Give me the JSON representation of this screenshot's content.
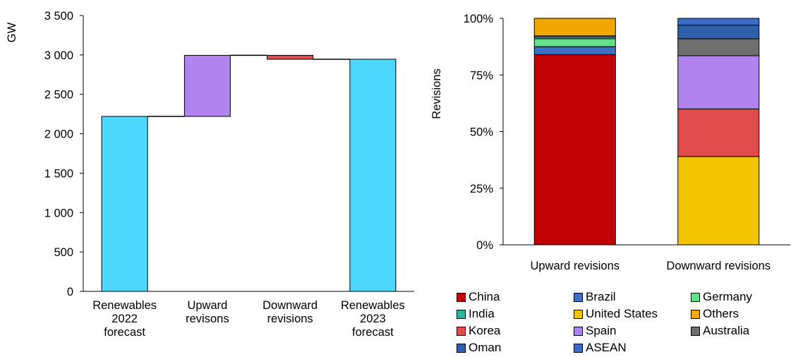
{
  "chart_data": [
    {
      "type": "bar",
      "subtype": "waterfall",
      "ylabel": "GW",
      "ylim": [
        0,
        3500
      ],
      "yticks": [
        0,
        500,
        1000,
        1500,
        2000,
        2500,
        3000,
        3500
      ],
      "ytick_labels": [
        "0",
        "500",
        "1 000",
        "1 500",
        "2 000",
        "2 500",
        "3 000",
        "3 500"
      ],
      "categories": [
        [
          "Renewables",
          "2022",
          "forecast"
        ],
        [
          "Upward",
          "revisons"
        ],
        [
          "Downward",
          "revisions"
        ],
        [
          "Renewables",
          "2023",
          "forecast"
        ]
      ],
      "bars": [
        {
          "base": 0,
          "top": 2220,
          "color": "#4dd8ff"
        },
        {
          "base": 2220,
          "top": 2995,
          "color": "#b084ee"
        },
        {
          "base": 2945,
          "top": 2995,
          "color": "#e24b4b"
        },
        {
          "base": 0,
          "top": 2945,
          "color": "#4dd8ff"
        }
      ],
      "values": [
        2220,
        775,
        -50,
        2945
      ],
      "grid": false
    },
    {
      "type": "bar",
      "subtype": "stacked-100",
      "ylabel": "Revisions",
      "ylim": [
        0,
        100
      ],
      "yticks": [
        0,
        25,
        50,
        75,
        100
      ],
      "ytick_labels": [
        "0%",
        "25%",
        "50%",
        "75%",
        "100%"
      ],
      "categories": [
        "Upward revisions",
        "Downward revisions"
      ],
      "series": [
        {
          "name": "China",
          "color": "#c00000",
          "values": [
            84,
            0
          ]
        },
        {
          "name": "Brazil",
          "color": "#3a6fc4",
          "values": [
            3.5,
            0
          ]
        },
        {
          "name": "Germany",
          "color": "#66e08a",
          "values": [
            3.5,
            0
          ]
        },
        {
          "name": "India",
          "color": "#2bb5a0",
          "values": [
            0.8,
            0
          ]
        },
        {
          "name": "United States",
          "color": "#f2c500",
          "values": [
            0.5,
            39
          ]
        },
        {
          "name": "Others",
          "color": "#f0a800",
          "values": [
            7.7,
            0
          ]
        },
        {
          "name": "Korea",
          "color": "#e24b4b",
          "values": [
            0,
            21
          ]
        },
        {
          "name": "Spain",
          "color": "#b084ee",
          "values": [
            0,
            23.5
          ]
        },
        {
          "name": "Australia",
          "color": "#6e6e6e",
          "values": [
            0,
            7.5
          ]
        },
        {
          "name": "Oman",
          "color": "#2e5fa8",
          "values": [
            0,
            6
          ]
        },
        {
          "name": "ASEAN",
          "color": "#3d6cc6",
          "values": [
            0,
            3
          ]
        }
      ],
      "legend": {
        "position": "bottom",
        "columns": 3
      },
      "grid": false
    }
  ]
}
